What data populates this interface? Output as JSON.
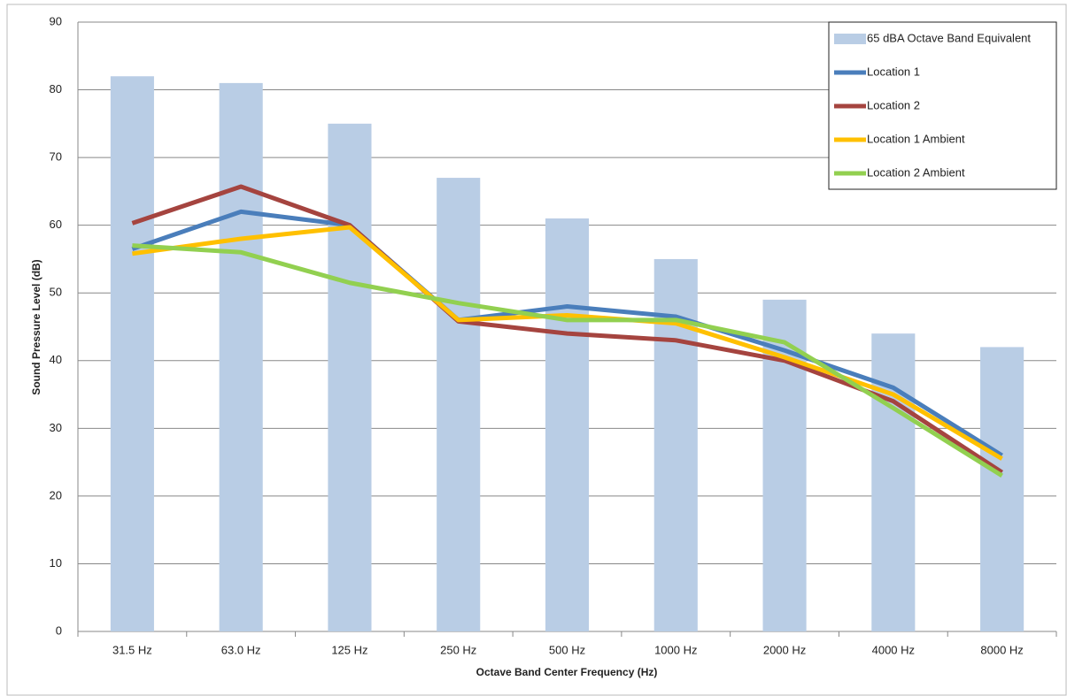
{
  "chart_data": {
    "type": "bar",
    "x_label": "Octave Band Center Frequency (Hz)",
    "y_label": "Sound Pressure Level (dB)",
    "categories": [
      "31.5 Hz",
      "63.0 Hz",
      "125 Hz",
      "250 Hz",
      "500 Hz",
      "1000 Hz",
      "2000 Hz",
      "4000 Hz",
      "8000 Hz"
    ],
    "series": [
      {
        "name": "65 dBA Octave Band Equivalent",
        "type": "bar",
        "color": "#b9cde5",
        "values": [
          82,
          81,
          75,
          67,
          61,
          55,
          49,
          44,
          42
        ]
      },
      {
        "name": "Location 1",
        "type": "line",
        "color": "#4a7ebb",
        "values": [
          56.5,
          62,
          60,
          46,
          48,
          46.5,
          41.5,
          36,
          26
        ]
      },
      {
        "name": "Location 2",
        "type": "line",
        "color": "#a5443f",
        "values": [
          60.3,
          65.7,
          60,
          45.8,
          44,
          43,
          40,
          34,
          23.5
        ]
      },
      {
        "name": "Location 1 Ambient",
        "type": "line",
        "color": "#ffc000",
        "values": [
          55.8,
          58,
          59.7,
          46,
          46.7,
          45.5,
          40.5,
          35,
          25.5
        ]
      },
      {
        "name": "Location 2 Ambient",
        "type": "line",
        "color": "#92d050",
        "values": [
          57,
          56,
          51.5,
          48.5,
          46,
          46,
          42.7,
          33,
          23
        ]
      }
    ],
    "ylim": [
      0,
      90
    ],
    "yticks": [
      0,
      10,
      20,
      30,
      40,
      50,
      60,
      70,
      80,
      90
    ],
    "grid": true,
    "legend": "top-right"
  }
}
